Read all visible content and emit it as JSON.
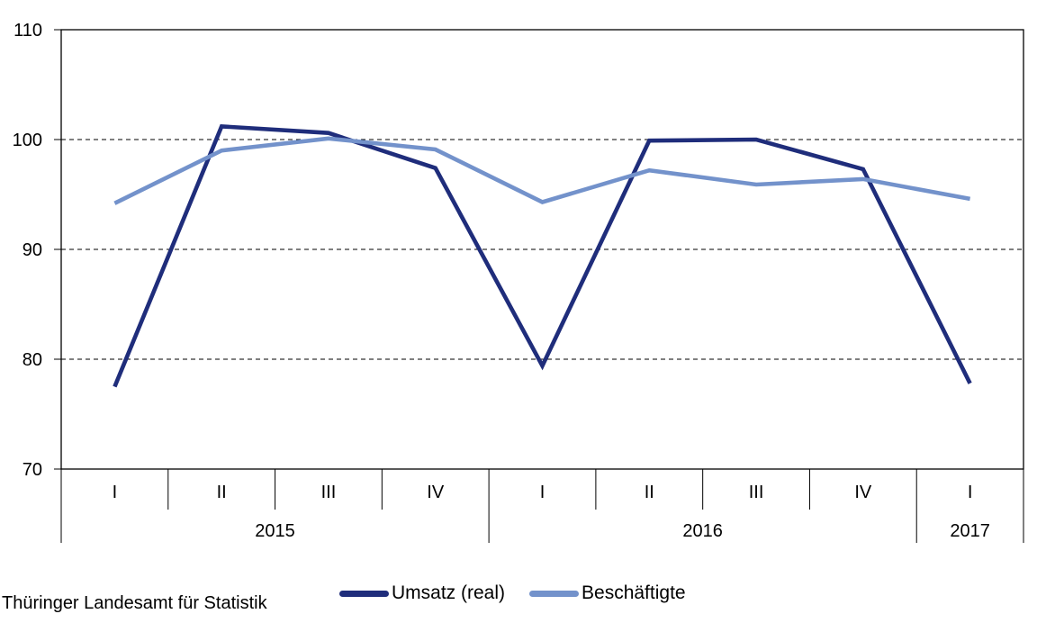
{
  "page": {
    "source_note": "Thüringer Landesamt für Statistik"
  },
  "legend": {
    "items": [
      {
        "label": "Umsatz (real)",
        "color": "#1f2d7b"
      },
      {
        "label": "Beschäftigte",
        "color": "#7392cb"
      }
    ]
  },
  "chart_data": {
    "type": "line",
    "title": "",
    "xlabel": "",
    "ylabel": "",
    "x_categories": [
      "I",
      "II",
      "III",
      "IV",
      "I",
      "II",
      "III",
      "IV",
      "I"
    ],
    "year_groups": [
      {
        "label": "2015",
        "span": 4
      },
      {
        "label": "2016",
        "span": 4
      },
      {
        "label": "2017",
        "span": 1
      }
    ],
    "ylim": [
      70,
      110
    ],
    "yticks": [
      70,
      80,
      90,
      100,
      110
    ],
    "grid": "horizontal dashed gridlines at 80, 90, 100; solid frame at 70 and 110",
    "legend_position": "bottom-center",
    "axis_color": "#000000",
    "series": [
      {
        "name": "Umsatz (real)",
        "color": "#1f2d7b",
        "values": [
          77.5,
          101.2,
          100.6,
          97.4,
          79.4,
          99.9,
          100.0,
          97.3,
          77.8
        ]
      },
      {
        "name": "Beschäftigte",
        "color": "#7392cb",
        "values": [
          94.2,
          99.0,
          100.1,
          99.1,
          94.3,
          97.2,
          95.9,
          96.4,
          94.6
        ]
      }
    ]
  }
}
